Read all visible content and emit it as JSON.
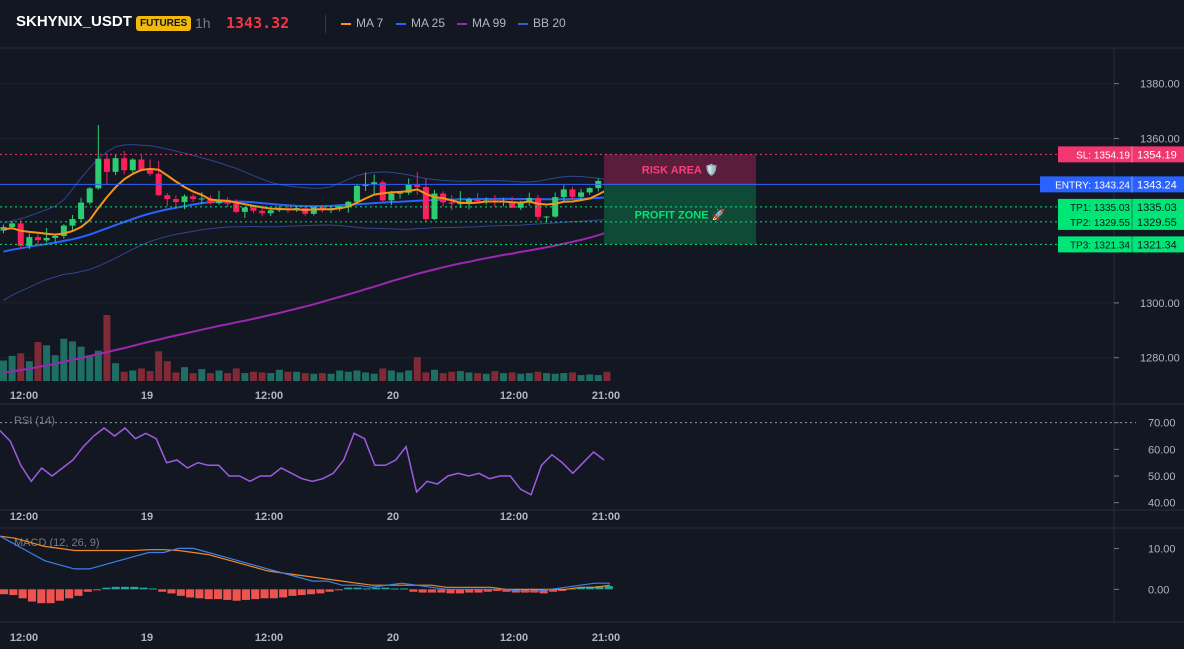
{
  "header": {
    "symbol": "SKHYNIX_USDT",
    "badge": "FUTURES",
    "interval": "1h",
    "price": "1343.32",
    "legend": [
      {
        "label": "MA 7",
        "color": "#f7931a"
      },
      {
        "label": "MA 25",
        "color": "#2962ff"
      },
      {
        "label": "MA 99",
        "color": "#9c27b0"
      },
      {
        "label": "BB 20",
        "color": "#3060c8"
      }
    ]
  },
  "colors": {
    "up": "#2ecc71",
    "down": "#ff1f5a",
    "vol_up": "#1e6e64",
    "vol_down": "#7f2a36",
    "rsi": "#9c5ce0",
    "macd": "#3f7fe8",
    "signal": "#f08a24",
    "hist_neg": "#ef5350",
    "hist_pos": "#26a69a"
  },
  "chart_data": [
    {
      "type": "candlestick",
      "name": "price",
      "y_axis_ticks": [
        "1380.00",
        "1360.00",
        "1300.00",
        "1280.00"
      ],
      "ylim": [
        1271.5,
        1393
      ],
      "x_axis_ticks": [
        "12:00",
        "19",
        "12:00",
        "20",
        "12:00",
        "21:00"
      ],
      "candles": [
        [
          1326.4,
          1328.6,
          1325.4,
          1327.7
        ],
        [
          1327.7,
          1329.8,
          1326.8,
          1329.0
        ],
        [
          1329.0,
          1330.4,
          1319.6,
          1320.8
        ],
        [
          1320.8,
          1325.3,
          1319.6,
          1324.0
        ],
        [
          1324.0,
          1325.1,
          1321.1,
          1322.9
        ],
        [
          1322.8,
          1327.3,
          1322.1,
          1323.7
        ],
        [
          1323.7,
          1325.2,
          1322.1,
          1324.4
        ],
        [
          1324.4,
          1328.7,
          1323.4,
          1328.2
        ],
        [
          1328.2,
          1332.1,
          1326.6,
          1330.6
        ],
        [
          1330.6,
          1338.4,
          1329.5,
          1336.6
        ],
        [
          1336.6,
          1342.2,
          1335.9,
          1341.8
        ],
        [
          1341.8,
          1364.9,
          1341.3,
          1352.6
        ],
        [
          1352.6,
          1354.5,
          1343.0,
          1347.8
        ],
        [
          1347.8,
          1354.3,
          1346.6,
          1352.8
        ],
        [
          1352.8,
          1355.4,
          1346.9,
          1348.4
        ],
        [
          1348.4,
          1352.8,
          1347.6,
          1352.3
        ],
        [
          1352.3,
          1353.9,
          1348.0,
          1348.6
        ],
        [
          1348.6,
          1352.4,
          1346.3,
          1347.1
        ],
        [
          1347.1,
          1351.8,
          1339.0,
          1339.3
        ],
        [
          1339.3,
          1340.1,
          1335.4,
          1337.9
        ],
        [
          1337.9,
          1339.2,
          1334.8,
          1336.8
        ],
        [
          1336.8,
          1339.6,
          1334.2,
          1338.9
        ],
        [
          1338.9,
          1339.7,
          1336.8,
          1337.9
        ],
        [
          1337.9,
          1340.4,
          1336.1,
          1338.1
        ],
        [
          1338.1,
          1339.2,
          1335.9,
          1336.4
        ],
        [
          1336.4,
          1340.9,
          1335.9,
          1337.6
        ],
        [
          1337.6,
          1338.6,
          1335.0,
          1336.2
        ],
        [
          1336.2,
          1337.8,
          1332.8,
          1333.2
        ],
        [
          1333.2,
          1335.1,
          1331.0,
          1334.8
        ],
        [
          1334.8,
          1335.3,
          1332.7,
          1333.6
        ],
        [
          1333.6,
          1335.6,
          1331.6,
          1332.7
        ],
        [
          1332.7,
          1334.4,
          1331.7,
          1333.8
        ],
        [
          1333.8,
          1335.3,
          1333.2,
          1334.5
        ],
        [
          1334.5,
          1335.3,
          1332.9,
          1334.1
        ],
        [
          1334.1,
          1335.3,
          1333.2,
          1334.6
        ],
        [
          1334.6,
          1335.0,
          1331.8,
          1332.5
        ],
        [
          1332.5,
          1335.3,
          1331.9,
          1334.9
        ],
        [
          1334.9,
          1335.7,
          1333.0,
          1333.8
        ],
        [
          1333.8,
          1335.3,
          1332.8,
          1334.3
        ],
        [
          1334.3,
          1335.5,
          1333.4,
          1335.3
        ],
        [
          1335.3,
          1337.2,
          1332.9,
          1336.9
        ],
        [
          1336.9,
          1343.3,
          1335.9,
          1342.7
        ],
        [
          1342.7,
          1347.6,
          1340.8,
          1343.2
        ],
        [
          1343.2,
          1346.9,
          1339.6,
          1344.0
        ],
        [
          1344.0,
          1344.7,
          1336.9,
          1337.4
        ],
        [
          1337.4,
          1340.8,
          1335.7,
          1339.9
        ],
        [
          1339.9,
          1340.6,
          1338.0,
          1340.2
        ],
        [
          1340.2,
          1345.4,
          1339.4,
          1343.1
        ],
        [
          1343.1,
          1347.7,
          1339.5,
          1342.3
        ],
        [
          1342.3,
          1345.4,
          1329.5,
          1330.6
        ],
        [
          1330.6,
          1341.3,
          1330.2,
          1339.9
        ],
        [
          1339.9,
          1340.7,
          1335.2,
          1336.7
        ],
        [
          1336.7,
          1339.3,
          1333.8,
          1336.2
        ],
        [
          1336.2,
          1340.8,
          1334.6,
          1336.4
        ],
        [
          1336.4,
          1338.5,
          1334.1,
          1337.9
        ],
        [
          1337.9,
          1340.1,
          1336.4,
          1337.1
        ],
        [
          1337.1,
          1338.5,
          1335.9,
          1337.4
        ],
        [
          1337.4,
          1339.3,
          1335.2,
          1336.8
        ],
        [
          1336.8,
          1338.3,
          1335.2,
          1337.0
        ],
        [
          1337.0,
          1338.8,
          1334.5,
          1334.7
        ],
        [
          1334.7,
          1337.3,
          1333.9,
          1336.8
        ],
        [
          1336.8,
          1340.2,
          1335.4,
          1338.3
        ],
        [
          1338.3,
          1339.4,
          1330.0,
          1331.4
        ],
        [
          1331.4,
          1331.7,
          1329.4,
          1331.5
        ],
        [
          1331.5,
          1340.3,
          1331.0,
          1338.6
        ],
        [
          1338.6,
          1342.9,
          1337.2,
          1341.4
        ],
        [
          1341.4,
          1342.3,
          1337.7,
          1338.7
        ],
        [
          1338.7,
          1341.6,
          1337.9,
          1340.3
        ],
        [
          1340.3,
          1342.2,
          1339.4,
          1341.9
        ],
        [
          1341.9,
          1345.4,
          1340.7,
          1344.5
        ],
        [
          1344.5,
          1346.0,
          1341.4,
          1343.3
        ]
      ],
      "ma7": [
        1326.8,
        1327.3,
        1326.3,
        1325.9,
        1325.6,
        1325.2,
        1324.9,
        1325.3,
        1326.2,
        1327.7,
        1330.2,
        1334.6,
        1338.6,
        1342.2,
        1345.1,
        1347.1,
        1348.5,
        1348.9,
        1348.6,
        1346.5,
        1344.3,
        1342.3,
        1340.6,
        1339.4,
        1337.7,
        1337.4,
        1337.2,
        1336.6,
        1336.0,
        1335.4,
        1334.9,
        1334.4,
        1334.3,
        1334.1,
        1334.1,
        1333.9,
        1334.1,
        1334.2,
        1334.2,
        1334.5,
        1335.1,
        1336.6,
        1338.1,
        1339.5,
        1340.0,
        1340.3,
        1340.5,
        1340.8,
        1341.4,
        1339.8,
        1338.6,
        1338.2,
        1337.4,
        1336.6,
        1336.4,
        1336.6,
        1337.0,
        1337.0,
        1337.0,
        1336.7,
        1336.6,
        1337.0,
        1336.2,
        1335.9,
        1336.2,
        1336.9,
        1337.0,
        1337.5,
        1338.1,
        1339.6,
        1341.2
      ],
      "ma25": [
        1318.7,
        1319.4,
        1319.9,
        1320.5,
        1321.0,
        1321.5,
        1322.0,
        1322.6,
        1323.2,
        1324.0,
        1324.9,
        1326.1,
        1327.2,
        1328.4,
        1329.5,
        1330.6,
        1331.7,
        1332.6,
        1333.4,
        1334.1,
        1334.7,
        1335.3,
        1335.9,
        1336.4,
        1336.7,
        1336.9,
        1337.0,
        1337.0,
        1336.9,
        1336.7,
        1336.4,
        1336.1,
        1335.8,
        1335.6,
        1335.4,
        1335.3,
        1335.3,
        1335.3,
        1335.4,
        1335.6,
        1335.8,
        1336.0,
        1336.2,
        1336.4,
        1336.6,
        1336.8,
        1336.9,
        1337.1,
        1337.3,
        1337.4,
        1337.5,
        1337.6,
        1337.7,
        1337.8,
        1337.8,
        1337.9,
        1337.9,
        1337.9,
        1338.0,
        1337.9,
        1337.9,
        1337.9,
        1337.8,
        1337.8,
        1337.8,
        1337.8,
        1337.9,
        1338.0,
        1338.1,
        1338.3,
        1338.5
      ],
      "ma99": [
        1274.5,
        1275.0,
        1275.5,
        1276.0,
        1276.6,
        1277.2,
        1277.8,
        1278.5,
        1279.2,
        1279.9,
        1280.6,
        1281.3,
        1282.0,
        1282.8,
        1283.5,
        1284.3,
        1285.1,
        1285.9,
        1286.6,
        1287.4,
        1288.1,
        1288.8,
        1289.5,
        1290.2,
        1290.9,
        1291.6,
        1292.2,
        1292.9,
        1293.5,
        1294.2,
        1294.9,
        1295.6,
        1296.3,
        1297.1,
        1297.9,
        1298.7,
        1299.5,
        1300.4,
        1301.3,
        1302.2,
        1303.1,
        1304.0,
        1305.0,
        1305.9,
        1306.9,
        1307.9,
        1308.8,
        1309.7,
        1310.6,
        1311.4,
        1312.2,
        1313.0,
        1313.7,
        1314.4,
        1315.0,
        1315.7,
        1316.3,
        1316.9,
        1317.5,
        1318.0,
        1318.6,
        1319.1,
        1319.7,
        1320.3,
        1320.9,
        1321.6,
        1322.3,
        1323.0,
        1323.8,
        1324.7,
        1325.7
      ],
      "bb_upper": [
        1329.1,
        1329.9,
        1330.7,
        1331.7,
        1332.9,
        1334.0,
        1335.3,
        1337.6,
        1341.5,
        1345.6,
        1349.2,
        1352.6,
        1355.1,
        1357.0,
        1357.6,
        1357.8,
        1357.5,
        1357.3,
        1356.8,
        1356.1,
        1355.4,
        1354.6,
        1353.8,
        1352.9,
        1352.1,
        1351.2,
        1350.1,
        1349.1,
        1347.8,
        1346.4,
        1345.2,
        1344.0,
        1343.2,
        1342.7,
        1342.3,
        1342.0,
        1341.8,
        1341.9,
        1342.4,
        1343.7,
        1345.1,
        1346.4,
        1347.2,
        1347.6,
        1347.8,
        1347.6,
        1347.2,
        1346.7,
        1346.0,
        1345.4,
        1345.0,
        1344.7,
        1344.5,
        1344.4,
        1344.4,
        1344.5,
        1344.7,
        1344.7,
        1344.6,
        1344.4,
        1344.1,
        1344.1,
        1344.4,
        1345.0,
        1345.6,
        1346.0,
        1346.2,
        1346.1,
        1345.8,
        1345.5,
        1345.0
      ],
      "bb_lower": [
        1300.9,
        1302.8,
        1304.3,
        1305.7,
        1307.2,
        1308.5,
        1309.5,
        1310.4,
        1310.8,
        1311.4,
        1312.2,
        1313.4,
        1314.8,
        1316.3,
        1318.0,
        1319.6,
        1321.1,
        1322.4,
        1323.4,
        1324.3,
        1325.0,
        1325.6,
        1326.1,
        1326.7,
        1327.1,
        1327.4,
        1327.7,
        1327.8,
        1327.8,
        1327.9,
        1327.8,
        1327.8,
        1327.8,
        1328.0,
        1328.1,
        1328.2,
        1328.3,
        1328.4,
        1328.4,
        1328.2,
        1327.9,
        1327.6,
        1327.3,
        1327.2,
        1327.1,
        1327.0,
        1326.9,
        1326.9,
        1327.1,
        1327.2,
        1327.4,
        1327.5,
        1327.5,
        1327.6,
        1327.7,
        1327.8,
        1328.0,
        1328.1,
        1328.2,
        1328.3,
        1328.4,
        1328.6,
        1328.8,
        1329.0,
        1329.2,
        1329.4,
        1329.6,
        1329.8,
        1330.0,
        1330.2,
        1330.4
      ],
      "volume_rel": [
        0.31,
        0.38,
        0.42,
        0.3,
        0.59,
        0.54,
        0.39,
        0.64,
        0.6,
        0.52,
        0.39,
        0.46,
        1.0,
        0.27,
        0.14,
        0.16,
        0.19,
        0.15,
        0.45,
        0.3,
        0.13,
        0.21,
        0.12,
        0.18,
        0.12,
        0.16,
        0.12,
        0.19,
        0.12,
        0.14,
        0.13,
        0.12,
        0.17,
        0.14,
        0.14,
        0.12,
        0.11,
        0.12,
        0.11,
        0.16,
        0.14,
        0.16,
        0.13,
        0.11,
        0.19,
        0.16,
        0.13,
        0.16,
        0.36,
        0.13,
        0.17,
        0.12,
        0.14,
        0.15,
        0.13,
        0.12,
        0.11,
        0.15,
        0.12,
        0.13,
        0.11,
        0.12,
        0.14,
        0.12,
        0.11,
        0.12,
        0.13,
        0.09,
        0.1,
        0.09,
        0.14
      ],
      "levels": [
        {
          "key": "sl",
          "label": "SL: 1354.19",
          "value": 1354.19,
          "price_label": "1354.19",
          "color": "#f23670"
        },
        {
          "key": "entry",
          "label": "ENTRY: 1343.24",
          "value": 1343.24,
          "price_label": "1343.24",
          "color": "#2962ff"
        },
        {
          "key": "tp1",
          "label": "TP1: 1335.03",
          "value": 1335.03,
          "price_label": "1335.03",
          "color": "#00e676"
        },
        {
          "key": "tp2",
          "label": "TP2: 1329.55",
          "value": 1329.55,
          "price_label": "1329.55",
          "color": "#00e676"
        },
        {
          "key": "tp3",
          "label": "TP3: 1321.34",
          "value": 1321.34,
          "price_label": "1321.34",
          "color": "#00e676"
        }
      ],
      "zones": {
        "risk_label": "RISK AREA 🛡️",
        "profit_label": "PROFIT ZONE 🚀"
      }
    },
    {
      "type": "line",
      "name": "RSI (14)",
      "y_axis_ticks": [
        "70.00",
        "60.00",
        "50.00",
        "40.00"
      ],
      "ylim": [
        38,
        77
      ],
      "x_axis_ticks": [
        "12:00",
        "19",
        "12:00",
        "20",
        "12:00",
        "21:00"
      ],
      "values": [
        67,
        63,
        54,
        48,
        53,
        50,
        53,
        56,
        61,
        65,
        68,
        65,
        68,
        64,
        66,
        64,
        55,
        56,
        53,
        55,
        54,
        54,
        50,
        50,
        48,
        50,
        50,
        53,
        51,
        49,
        48,
        49,
        51,
        56,
        66,
        64,
        54,
        54,
        56,
        61,
        44,
        48,
        47,
        50,
        51,
        50,
        51,
        49,
        50,
        50,
        45,
        43,
        54,
        58,
        55,
        51,
        55,
        59,
        56
      ],
      "reference_line": 70
    },
    {
      "type": "line",
      "name": "MACD (12, 26, 9)",
      "y_axis_ticks": [
        "10.00",
        "0.00"
      ],
      "ylim": [
        -8,
        15
      ],
      "x_axis_ticks": [
        "12:00",
        "19",
        "12:00",
        "20",
        "12:00",
        "21:00"
      ],
      "macd": [
        13,
        11,
        9,
        7,
        6,
        5,
        5,
        6,
        7,
        8,
        9,
        9,
        10,
        10,
        9,
        8,
        7,
        6,
        5,
        4,
        3,
        2,
        2,
        1,
        1,
        0.5,
        1,
        1.5,
        1,
        0.5,
        0,
        0,
        0,
        0,
        0,
        -0.5,
        -0.5,
        0,
        0.5,
        1,
        1.5,
        1.5
      ],
      "signal": [
        13,
        12.5,
        11.5,
        10.5,
        10,
        9.5,
        9.5,
        9.5,
        9.5,
        9.5,
        9.7,
        9.7,
        9.5,
        9,
        8.5,
        7.5,
        6.5,
        5.5,
        4.5,
        4,
        3.5,
        3,
        2.5,
        2,
        1.5,
        1,
        1,
        1,
        1,
        1,
        0.5,
        0.5,
        0.5,
        0.5,
        0,
        0,
        0,
        0,
        0,
        0.5,
        0.5,
        1
      ],
      "histogram": [
        -1.2,
        -1.4,
        -2.2,
        -3.0,
        -3.4,
        -3.4,
        -2.8,
        -2.2,
        -1.6,
        -0.6,
        -0.2,
        0.4,
        0.6,
        0.6,
        0.6,
        0.4,
        0.2,
        -0.6,
        -1.0,
        -1.6,
        -2.0,
        -2.2,
        -2.4,
        -2.4,
        -2.6,
        -2.8,
        -2.6,
        -2.4,
        -2.2,
        -2.2,
        -2.0,
        -1.6,
        -1.4,
        -1.2,
        -1.0,
        -0.6,
        -0.2,
        0.4,
        0.4,
        0.2,
        0.4,
        0.4,
        0.2,
        0.2,
        -0.6,
        -0.8,
        -0.8,
        -0.8,
        -1.0,
        -1.0,
        -0.8,
        -0.8,
        -0.6,
        -0.4,
        -0.6,
        -0.8,
        -0.8,
        -0.8,
        -1.0,
        -0.6,
        -0.4,
        0.2,
        0.4,
        0.6,
        0.8,
        0.8
      ]
    }
  ]
}
